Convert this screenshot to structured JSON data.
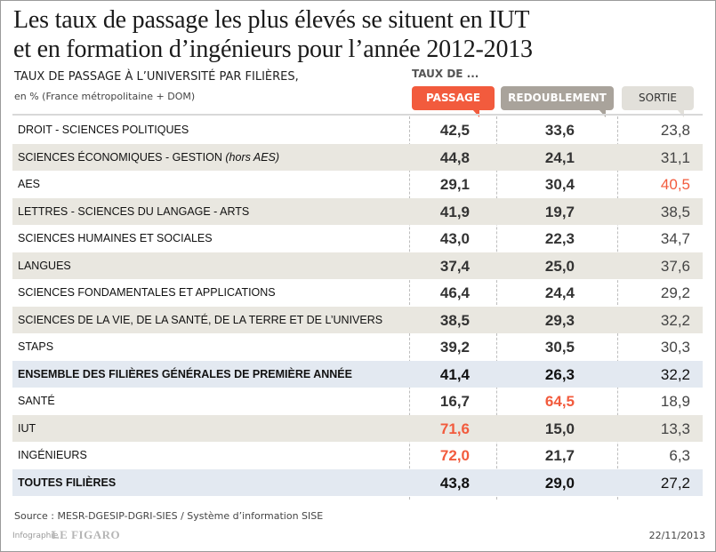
{
  "title_line1": "Les taux de passage les plus élevés se situent en IUT",
  "title_line2": "et en formation d’ingénieurs pour l’année 2012-2013",
  "subtitle": "TAUX DE PASSAGE À L’UNIVERSITÉ PAR FILIÈRES,",
  "unit": "en % (France métropolitaine + DOM)",
  "taux_de": "TAUX DE ...",
  "source": "Source : MESR-DGESIP-DGRI-SIES / Système d’information SISE",
  "credit": "Infographie",
  "logo": "LE FIGARO",
  "date": "22/11/2013",
  "colors": {
    "passage": "#f25b3d",
    "redoublement": "#a9a39b",
    "sortie": "#e2e0da",
    "highlight": "#f25b3d",
    "total_row": "#e3e9f1",
    "shaded_row": "#e9e7e0"
  },
  "chart_data": {
    "type": "table",
    "columns": [
      "PASSAGE",
      "REDOUBLEMENT",
      "SORTIE"
    ],
    "rows": [
      {
        "label": "DROIT - SCIENCES POLITIQUES",
        "values": [
          "42,5",
          "33,6",
          "23,8"
        ],
        "highlight": [],
        "style": "plain"
      },
      {
        "label": "SCIENCES ÉCONOMIQUES - GESTION",
        "label_italic": "(hors AES)",
        "values": [
          "44,8",
          "24,1",
          "31,1"
        ],
        "highlight": [],
        "style": "shade"
      },
      {
        "label": "AES",
        "values": [
          "29,1",
          "30,4",
          "40,5"
        ],
        "highlight": [
          2
        ],
        "style": "plain"
      },
      {
        "label": "LETTRES - SCIENCES DU LANGAGE - ARTS",
        "values": [
          "41,9",
          "19,7",
          "38,5"
        ],
        "highlight": [],
        "style": "shade"
      },
      {
        "label": "SCIENCES HUMAINES ET SOCIALES",
        "values": [
          "43,0",
          "22,3",
          "34,7"
        ],
        "highlight": [],
        "style": "plain"
      },
      {
        "label": "LANGUES",
        "values": [
          "37,4",
          "25,0",
          "37,6"
        ],
        "highlight": [],
        "style": "shade"
      },
      {
        "label": "SCIENCES FONDAMENTALES ET APPLICATIONS",
        "values": [
          "46,4",
          "24,4",
          "29,2"
        ],
        "highlight": [],
        "style": "plain"
      },
      {
        "label": "SCIENCES DE LA VIE, DE LA SANTÉ, DE LA TERRE ET DE L’UNIVERS",
        "values": [
          "38,5",
          "29,3",
          "32,2"
        ],
        "highlight": [],
        "style": "shade"
      },
      {
        "label": "STAPS",
        "values": [
          "39,2",
          "30,5",
          "30,3"
        ],
        "highlight": [],
        "style": "plain"
      },
      {
        "label": "ENSEMBLE DES FILIÈRES GÉNÉRALES DE PREMIÈRE ANNÉE",
        "values": [
          "41,4",
          "26,3",
          "32,2"
        ],
        "highlight": [],
        "style": "total"
      },
      {
        "label": "SANTÉ",
        "values": [
          "16,7",
          "64,5",
          "18,9"
        ],
        "highlight": [
          1
        ],
        "style": "plain"
      },
      {
        "label": "IUT",
        "values": [
          "71,6",
          "15,0",
          "13,3"
        ],
        "highlight": [
          0
        ],
        "style": "shade"
      },
      {
        "label": "INGÉNIEURS",
        "values": [
          "72,0",
          "21,7",
          "6,3"
        ],
        "highlight": [
          0
        ],
        "style": "plain"
      },
      {
        "label": "TOUTES FILIÈRES",
        "values": [
          "43,8",
          "29,0",
          "27,2"
        ],
        "highlight": [],
        "style": "total"
      }
    ]
  }
}
